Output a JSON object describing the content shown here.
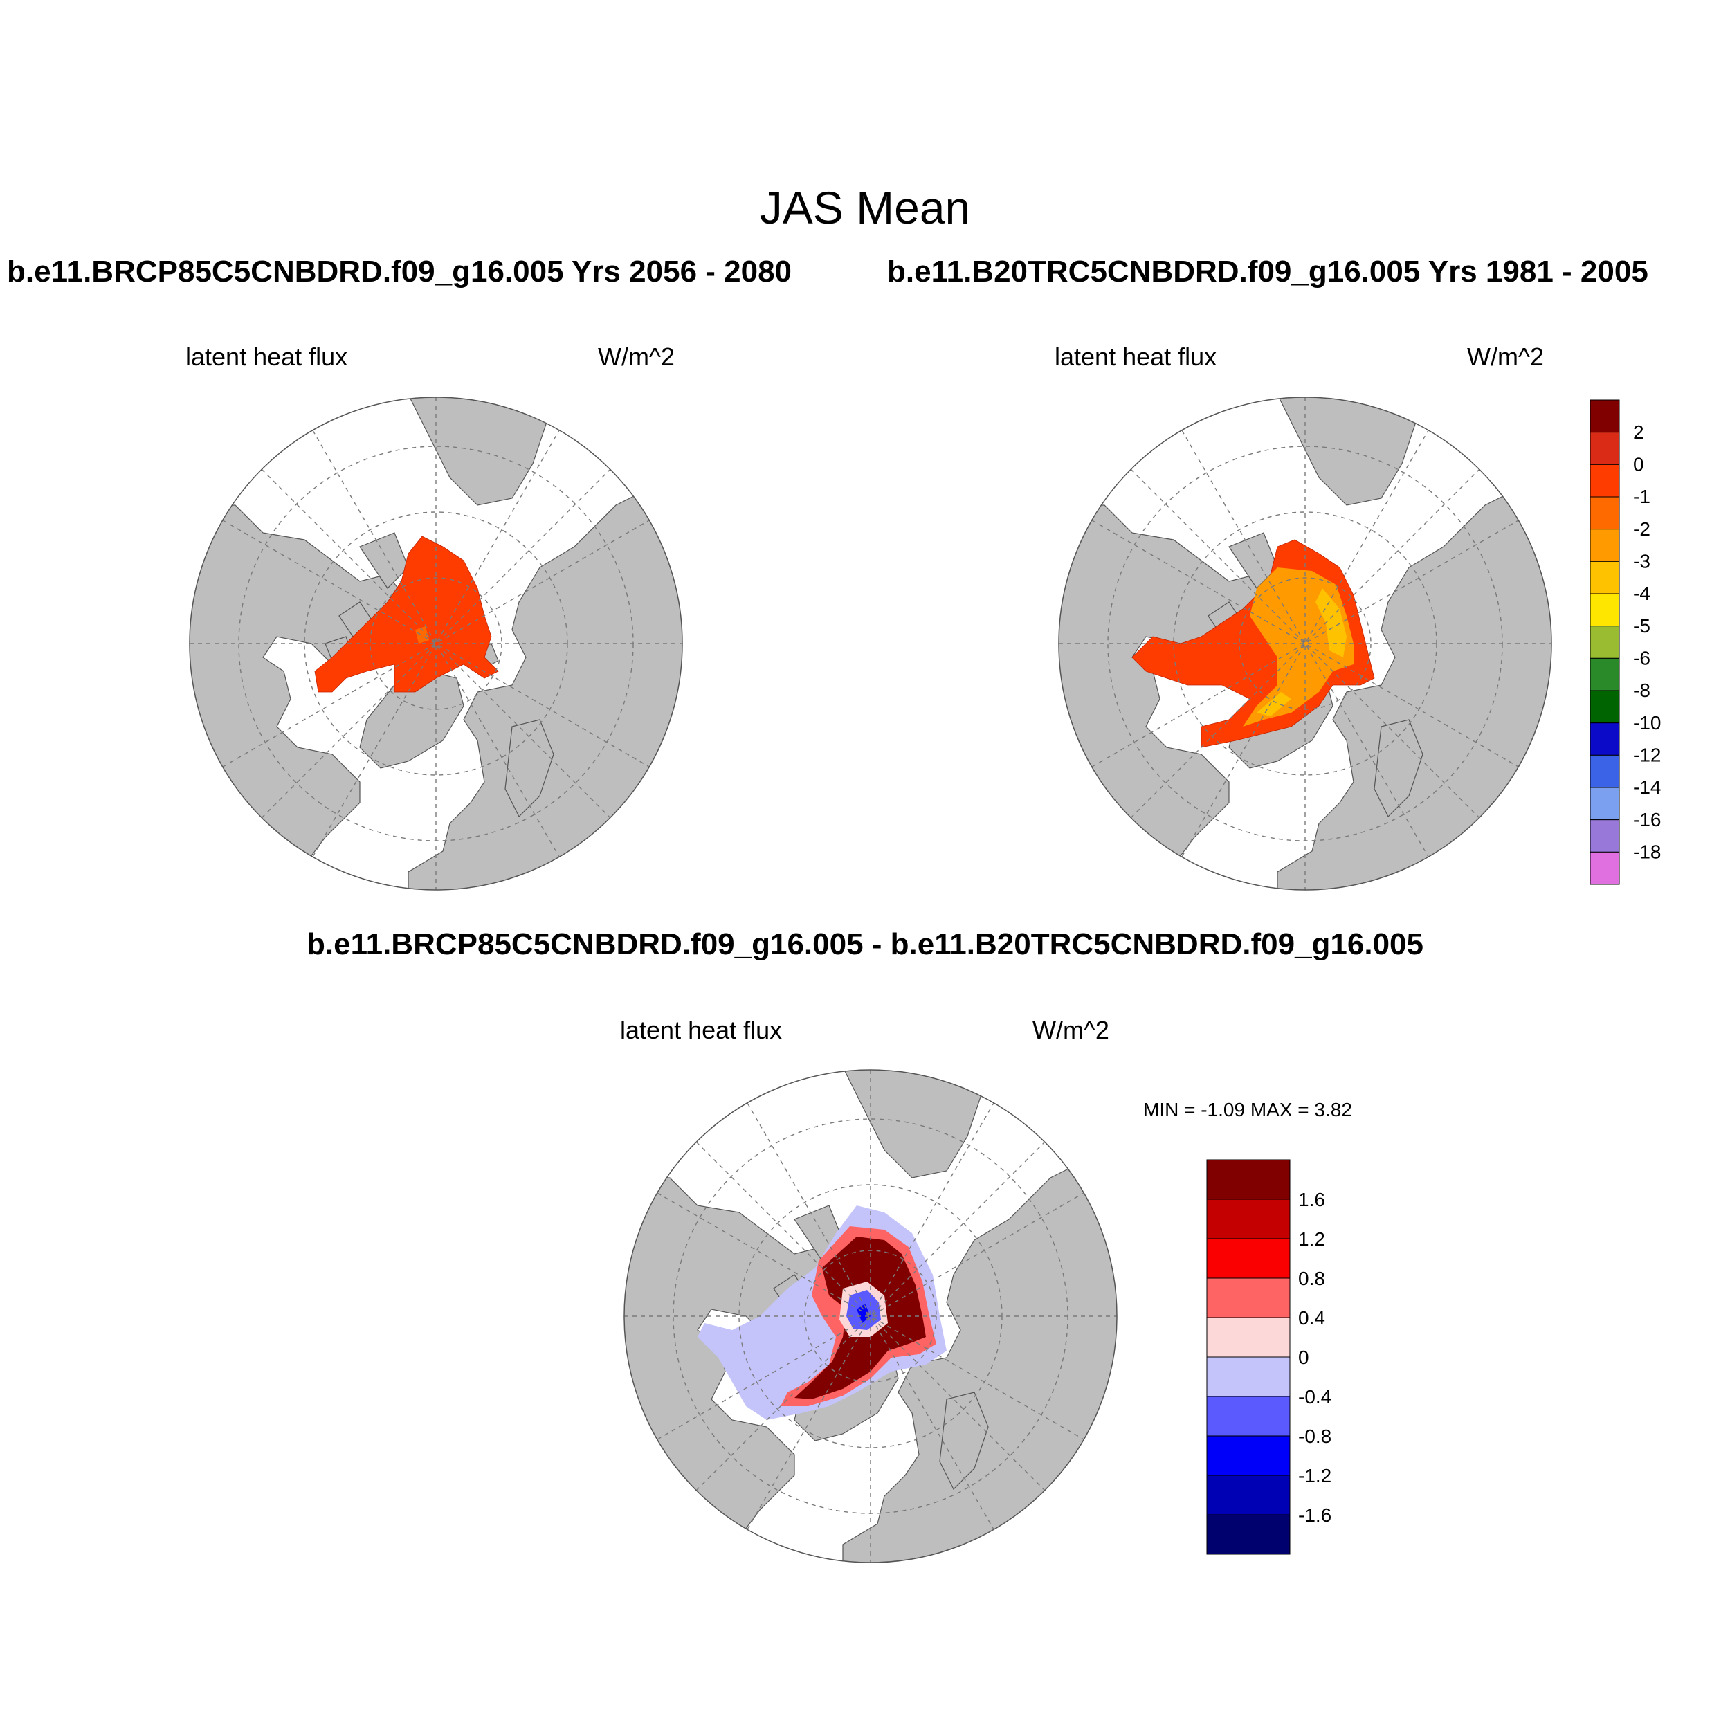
{
  "figure": {
    "title": "JAS Mean",
    "panels": [
      {
        "header": "b.e11.BRCP85C5CNBDRD.f09_g16.005  Yrs 2056 - 2080",
        "variable": "latent heat flux",
        "units": "W/m^2"
      },
      {
        "header": "b.e11.B20TRC5CNBDRD.f09_g16.005  Yrs 1981 - 2005",
        "variable": "latent heat flux",
        "units": "W/m^2"
      },
      {
        "header": "b.e11.BRCP85C5CNBDRD.f09_g16.005 - b.e11.B20TRC5CNBDRD.f09_g16.005",
        "variable": "latent heat flux",
        "units": "W/m^2",
        "stats": "MIN =  -1.09 MAX =   3.82"
      }
    ]
  },
  "colorbars": {
    "main": {
      "labels": [
        "2",
        "0",
        "-1",
        "-2",
        "-3",
        "-4",
        "-5",
        "-6",
        "-8",
        "-10",
        "-12",
        "-14",
        "-16",
        "-18"
      ],
      "colors": [
        "#800000",
        "#d92b15",
        "#ff3c00",
        "#ff6a00",
        "#ff9a00",
        "#ffc200",
        "#ffe600",
        "#9abc30",
        "#2a8a2a",
        "#006400",
        "#0a0ac8",
        "#3a63e8",
        "#7ca0f0",
        "#9878d8",
        "#e070e0"
      ]
    },
    "diff": {
      "labels": [
        "1.6",
        "1.2",
        "0.8",
        "0.4",
        "0",
        "-0.4",
        "-0.8",
        "-1.2",
        "-1.6"
      ],
      "colors": [
        "#800000",
        "#c40000",
        "#fa0000",
        "#fe6464",
        "#fdd8d8",
        "#c4c4fb",
        "#5a5afe",
        "#0000fa",
        "#0000b4",
        "#00006e"
      ]
    }
  },
  "map": {
    "land_color": "#bebebe",
    "ocean_color": "#ffffff"
  }
}
